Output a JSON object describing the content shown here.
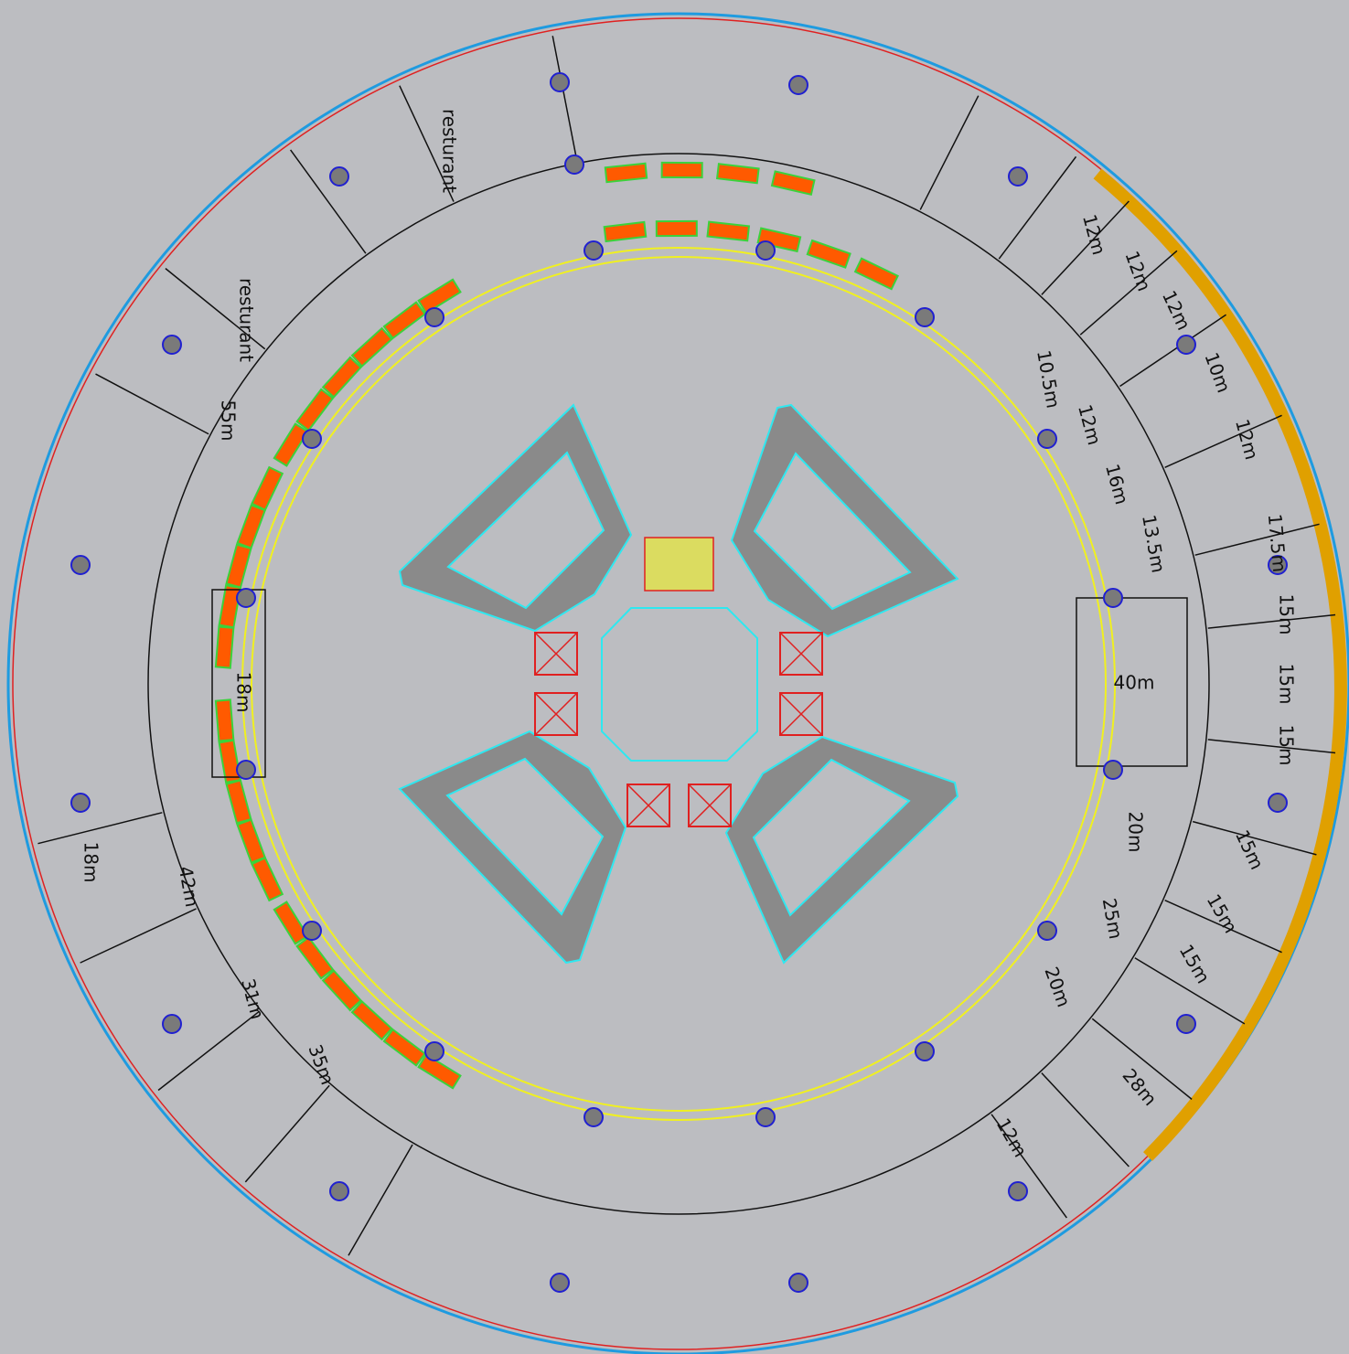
{
  "restaurants": [
    "resturant",
    "resturant"
  ],
  "rooms": [
    "55m",
    "18m",
    "18m",
    "42m",
    "31m",
    "35m",
    "12m",
    "12m",
    "12m",
    "10m",
    "12m",
    "17.5m",
    "15m",
    "15m",
    "15m",
    "15m",
    "15m",
    "15m",
    "28m",
    "12m",
    "20m",
    "25m",
    "20m",
    "40m",
    "10.5m",
    "12m",
    "16m",
    "13.5m"
  ]
}
